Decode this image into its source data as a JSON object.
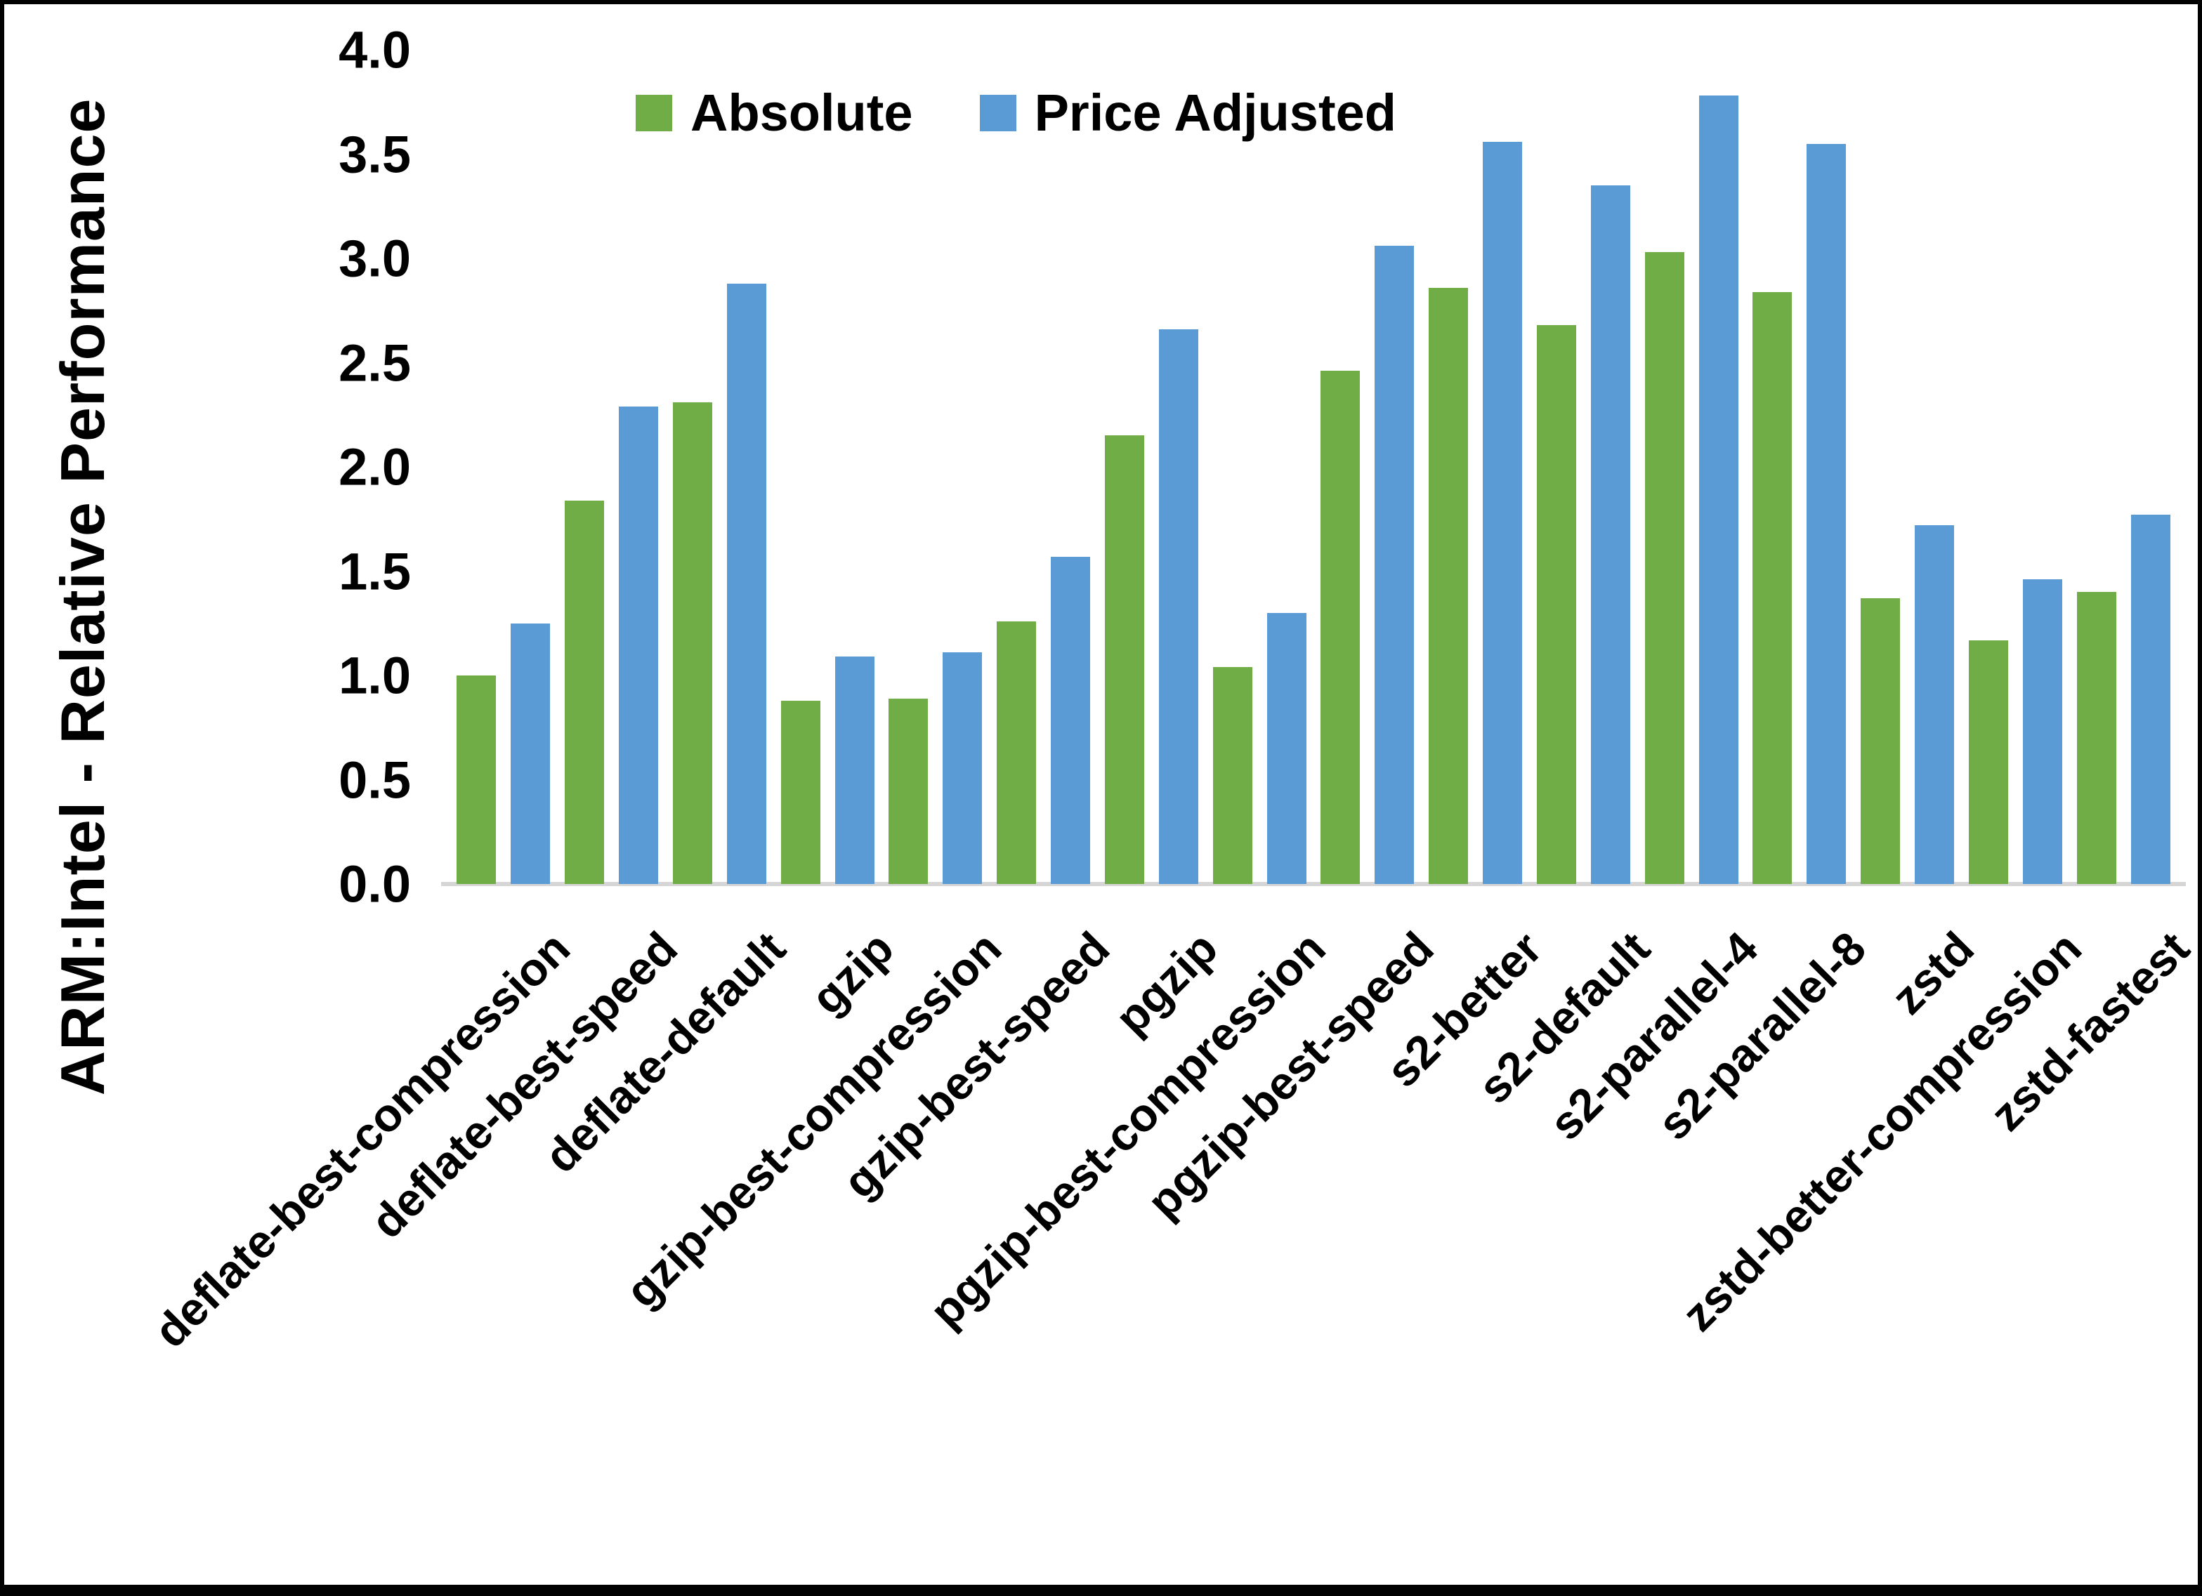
{
  "chart_data": {
    "type": "bar",
    "title": "",
    "xlabel": "",
    "ylabel": "ARM:Intel - Relative Performance",
    "ylim": [
      0,
      4
    ],
    "ytick_step": 0.5,
    "ytick_labels": [
      "0.0",
      "0.5",
      "1.0",
      "1.5",
      "2.0",
      "2.5",
      "3.0",
      "3.5",
      "4.0"
    ],
    "grid": false,
    "legend_position": "top-center-inside",
    "categories": [
      "deflate-best-compression",
      "deflate-best-speed",
      "deflate-default",
      "gzip",
      "gzip-best-compression",
      "gzip-best-speed",
      "pgzip",
      "pgzip-best-compression",
      "pgzip-best-speed",
      "s2-better",
      "s2-default",
      "s2-parallel-4",
      "s2-parallel-8",
      "zstd",
      "zstd-better-compression",
      "zstd-fastest"
    ],
    "series": [
      {
        "name": "Absolute",
        "color": "#70AD47",
        "values": [
          1.0,
          1.84,
          2.31,
          0.88,
          0.89,
          1.26,
          2.15,
          1.04,
          2.46,
          2.86,
          2.68,
          3.03,
          2.84,
          1.37,
          1.17,
          1.4
        ]
      },
      {
        "name": "Price Adjusted",
        "color": "#5B9BD5",
        "values": [
          1.25,
          2.29,
          2.88,
          1.09,
          1.11,
          1.57,
          2.66,
          1.3,
          3.06,
          3.56,
          3.35,
          3.78,
          3.55,
          1.72,
          1.46,
          1.77
        ]
      }
    ]
  },
  "colors": {
    "background": "#FFFFFF",
    "axis_line": "#D6D6D6",
    "text": "#000000",
    "frame": "#000000"
  }
}
